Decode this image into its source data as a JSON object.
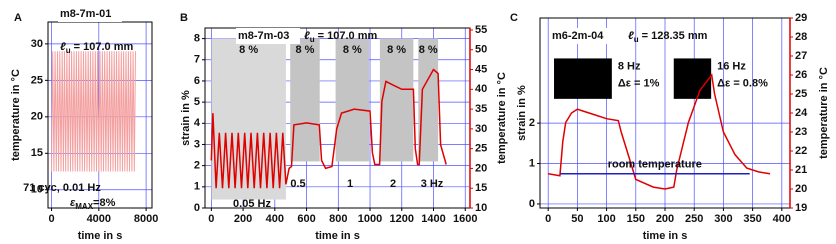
{
  "chart_data": [
    {
      "type": "line",
      "panel_label": "A",
      "specimen": "m8-7m-01",
      "gauge_length": {
        "symbol": "ℓ",
        "subscript": "u",
        "text": " = 107.0 mm"
      },
      "xlabel": "time in s",
      "ylabel": "temperature in °C",
      "xlim": [
        -300,
        8500
      ],
      "xticks": [
        0,
        4000,
        8000
      ],
      "ylim": [
        7.5,
        33
      ],
      "yticks": [
        10,
        15,
        20,
        25,
        30
      ],
      "grid": true,
      "series": [
        {
          "color": "#f4a0a0",
          "x": [
            0,
            100,
            200,
            300,
            400,
            500,
            600,
            700,
            800,
            900,
            1000,
            1100,
            1200,
            1300,
            1400,
            1500,
            1600,
            1700,
            1800,
            1900,
            2000,
            2100,
            2200,
            2300,
            2400,
            2500,
            2600,
            2700,
            2800,
            2900,
            3000,
            3100,
            3200,
            3300,
            3400,
            3500,
            3600,
            3700,
            3800,
            3900,
            4000,
            4100,
            4200,
            4300,
            4400,
            4500,
            4600,
            4700,
            4800,
            4900,
            5000,
            5100,
            5200,
            5300,
            5400,
            5500,
            5600,
            5700,
            5800,
            5900,
            6000,
            6100,
            6200,
            6300,
            6400,
            6500,
            6600,
            6700,
            6800,
            6900,
            7000,
            7100
          ],
          "values": [
            12.5,
            29,
            12.5,
            29,
            12.5,
            29,
            12.5,
            29,
            12.5,
            29,
            12.5,
            29,
            12.5,
            29,
            12.5,
            29,
            12.5,
            29,
            12.5,
            29,
            12.5,
            29,
            12.5,
            29,
            12.5,
            29,
            12.5,
            29,
            12.5,
            29,
            12.5,
            29,
            12.5,
            29,
            12.5,
            29,
            12.5,
            29,
            12.5,
            29,
            12.5,
            29,
            12.5,
            29,
            12.5,
            29,
            12.5,
            29,
            12.5,
            29,
            12.5,
            29,
            12.5,
            29,
            12.5,
            29,
            12.5,
            29,
            12.5,
            29,
            12.5,
            29,
            12.5,
            29,
            12.5,
            29,
            12.5,
            29,
            12.5,
            29,
            12.5,
            29
          ]
        }
      ],
      "annotations": [
        "71 cyc, 0.01 Hz"
      ],
      "strain_label": {
        "symbol": "ε",
        "subscript": "MAX",
        "text": "=8%"
      }
    },
    {
      "type": "line",
      "panel_label": "B",
      "specimen": "m8-7m-03",
      "gauge_length": {
        "symbol": "ℓ",
        "subscript": "u",
        "text": " = 107.0 mm"
      },
      "xlabel": "time in s",
      "ylabel": "strain in %",
      "y2label": "temperature in °C",
      "y2_color": "#e00000",
      "xlim": [
        -40,
        1630
      ],
      "xticks": [
        0,
        200,
        400,
        600,
        800,
        1000,
        1200,
        1400,
        1600
      ],
      "ylim": [
        0,
        8.5
      ],
      "yticks": [
        0,
        1,
        2,
        3,
        4,
        5,
        6,
        7,
        8
      ],
      "y2lim": [
        10,
        55.5
      ],
      "y2ticks": [
        10,
        15,
        20,
        25,
        30,
        35,
        40,
        45,
        50,
        55
      ],
      "grid": true,
      "regions": [
        {
          "x": [
            0,
            470
          ],
          "values": [
            0.4,
            8
          ],
          "color": "#d9d9d9",
          "labels": [
            "8 %"
          ]
        },
        {
          "x": [
            497,
            683
          ],
          "values": [
            2.2,
            8
          ],
          "color": "#c4c4c4",
          "labels": [
            "8 %"
          ]
        },
        {
          "x": [
            783,
            994
          ],
          "values": [
            2.2,
            8
          ],
          "color": "#c4c4c4",
          "labels": [
            "8 %"
          ]
        },
        {
          "x": [
            1062,
            1273
          ],
          "values": [
            2.2,
            8
          ],
          "color": "#c4c4c4",
          "labels": [
            "8 %"
          ]
        },
        {
          "x": [
            1304,
            1429
          ],
          "values": [
            2.2,
            8
          ],
          "color": "#c4c4c4",
          "labels": [
            "8 %"
          ]
        }
      ],
      "series": [
        {
          "color": "#e00000",
          "axis": "y2",
          "x": [
            0,
            10,
            30,
            50,
            70,
            90,
            110,
            130,
            150,
            170,
            190,
            210,
            230,
            250,
            270,
            290,
            310,
            330,
            350,
            370,
            390,
            410,
            430,
            450,
            470,
            490,
            505,
            520,
            600,
            680,
            695,
            720,
            760,
            790,
            820,
            900,
            1000,
            1015,
            1030,
            1060,
            1075,
            1100,
            1150,
            1200,
            1273,
            1285,
            1300,
            1310,
            1330,
            1400,
            1429,
            1445,
            1480
          ],
          "values": [
            22,
            34,
            15,
            29,
            15,
            29,
            15,
            29,
            15,
            29,
            15,
            29,
            15,
            29,
            15,
            29,
            15,
            29,
            15,
            29,
            15,
            29,
            15,
            29,
            16,
            20,
            20.5,
            31,
            31.5,
            31,
            22,
            20,
            20.5,
            30,
            34,
            35,
            34.5,
            24,
            21,
            21,
            37,
            42,
            41,
            40,
            40,
            25,
            21,
            21,
            40,
            45,
            44,
            26,
            21
          ]
        }
      ],
      "annotations": [
        "0.05 Hz",
        "0.5",
        "1",
        "2",
        "3 Hz"
      ]
    },
    {
      "type": "line",
      "panel_label": "C",
      "specimen": "m6-2m-04",
      "gauge_length": {
        "symbol": "ℓ",
        "subscript": "u",
        "text": " = 128.35 mm"
      },
      "xlabel": "time in s",
      "ylabel": "strain in %",
      "y2label": "temperature in °C",
      "y2_color": "#e00000",
      "xlim": [
        -14,
        414
      ],
      "xticks": [
        0,
        50,
        100,
        150,
        200,
        250,
        300,
        350,
        400
      ],
      "ylim": [
        -0.1,
        4.6
      ],
      "yticks": [
        0,
        1,
        2
      ],
      "y2lim": [
        19,
        29
      ],
      "y2ticks": [
        19,
        20,
        21,
        22,
        23,
        24,
        25,
        26,
        27,
        28,
        29
      ],
      "grid": true,
      "regions": [
        {
          "x": [
            10,
            109
          ],
          "values": [
            2.6,
            3.6
          ],
          "color": "#000000",
          "labels": [
            "8 Hz",
            "Δε = 1%"
          ]
        },
        {
          "x": [
            215,
            279
          ],
          "values": [
            2.6,
            3.6
          ],
          "color": "#000000",
          "labels": [
            "16 Hz",
            "Δε = 0.8%"
          ]
        }
      ],
      "series": [
        {
          "color": "#e00000",
          "axis": "y2",
          "x": [
            0,
            20,
            25,
            30,
            40,
            50,
            60,
            80,
            100,
            120,
            125,
            140,
            150,
            180,
            200,
            215,
            220,
            240,
            260,
            275,
            280,
            285,
            300,
            320,
            340,
            360,
            380
          ],
          "values": [
            20.8,
            20.7,
            22.5,
            23.5,
            24,
            24.2,
            24.1,
            23.9,
            23.7,
            23.6,
            23,
            21.5,
            20.5,
            20.1,
            20,
            20.1,
            21,
            23.5,
            25.2,
            25.8,
            26,
            25,
            23,
            21.8,
            21.1,
            20.9,
            20.8
          ]
        },
        {
          "name": "room temperature",
          "color": "#2020c0",
          "axis": "y2",
          "x": [
            20,
            345
          ],
          "values": [
            20.8,
            20.8
          ]
        }
      ],
      "annotations": []
    }
  ]
}
